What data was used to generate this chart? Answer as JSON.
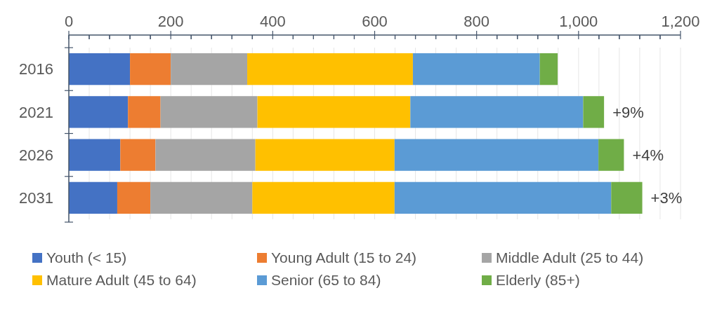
{
  "chart_data": {
    "type": "bar",
    "orientation": "horizontal",
    "stacked": true,
    "categories": [
      "2016",
      "2021",
      "2026",
      "2031"
    ],
    "series": [
      {
        "name": "Youth (< 15)",
        "color": "#4472c4",
        "values": [
          120,
          116,
          101,
          95
        ]
      },
      {
        "name": "Young Adult (15 to 24)",
        "color": "#ed7d31",
        "values": [
          80,
          64,
          69,
          65
        ]
      },
      {
        "name": "Middle Adult (25 to 44)",
        "color": "#a5a5a5",
        "values": [
          150,
          190,
          196,
          200
        ]
      },
      {
        "name": "Mature Adult (45 to 64)",
        "color": "#ffc000",
        "values": [
          325,
          300,
          273,
          279
        ]
      },
      {
        "name": "Senior (65 to 84)",
        "color": "#5b9bd5",
        "values": [
          249,
          339,
          400,
          425
        ]
      },
      {
        "name": "Elderly (85+)",
        "color": "#70ad47",
        "values": [
          35,
          41,
          50,
          61
        ]
      }
    ],
    "xlim": [
      0,
      1200
    ],
    "xticks": [
      0,
      {
        "value": 40,
        "label": null
      },
      {
        "value": 80,
        "label": null
      },
      {
        "value": 120,
        "label": null
      },
      {
        "value": 160,
        "label": null
      },
      200,
      {
        "value": 240,
        "label": null
      },
      {
        "value": 280,
        "label": null
      },
      {
        "value": 320,
        "label": null
      },
      {
        "value": 360,
        "label": null
      },
      400,
      {
        "value": 440,
        "label": null
      },
      {
        "value": 480,
        "label": null
      },
      {
        "value": 520,
        "label": null
      },
      {
        "value": 560,
        "label": null
      },
      600,
      {
        "value": 640,
        "label": null
      },
      {
        "value": 680,
        "label": null
      },
      {
        "value": 720,
        "label": null
      },
      {
        "value": 760,
        "label": null
      },
      800,
      {
        "value": 840,
        "label": null
      },
      {
        "value": 880,
        "label": null
      },
      {
        "value": 920,
        "label": null
      },
      {
        "value": 960,
        "label": null
      },
      {
        "value": 1000,
        "label": "1,000"
      },
      {
        "value": 1040,
        "label": null
      },
      {
        "value": 1080,
        "label": null
      },
      {
        "value": 1120,
        "label": null
      },
      {
        "value": 1160,
        "label": null
      },
      {
        "value": 1200,
        "label": "1,200"
      }
    ],
    "grid": "x",
    "legend": "bottom",
    "annotations": [
      {
        "text": "+9%",
        "x": 1050,
        "y": "2021"
      },
      {
        "text": "+4%",
        "x": 1089,
        "y": "2026"
      },
      {
        "text": "+3%",
        "x": 1125,
        "y": "2031"
      }
    ]
  }
}
